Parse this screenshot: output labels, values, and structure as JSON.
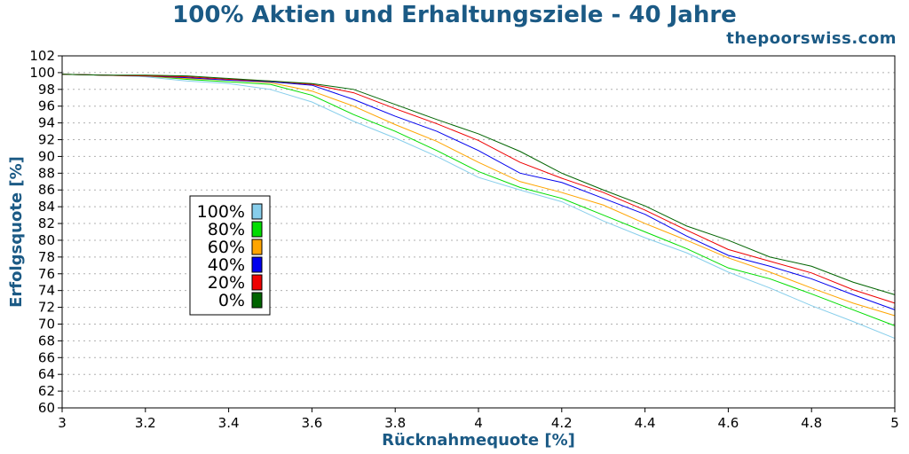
{
  "title": "100% Aktien und Erhaltungsziele - 40 Jahre",
  "site": "thepoorswiss.com",
  "chart_data": {
    "type": "line",
    "title": "100% Aktien und Erhaltungsziele - 40 Jahre",
    "xlabel": "Rücknahmequote [%]",
    "ylabel": "Erfolgsquote [%]",
    "xlim": [
      3,
      5
    ],
    "ylim": [
      60,
      102
    ],
    "x_ticks": [
      "3",
      "3.2",
      "3.4",
      "3.6",
      "3.8",
      "4",
      "4.2",
      "4.4",
      "4.6",
      "4.8",
      "5"
    ],
    "y_ticks": [
      "60",
      "62",
      "64",
      "66",
      "68",
      "70",
      "72",
      "74",
      "76",
      "78",
      "80",
      "82",
      "84",
      "86",
      "88",
      "90",
      "92",
      "94",
      "96",
      "98",
      "100",
      "102"
    ],
    "grid": "horizontal dotted",
    "legend_placement": "center-left",
    "x": [
      3.0,
      3.1,
      3.2,
      3.3,
      3.4,
      3.5,
      3.6,
      3.7,
      3.8,
      3.9,
      4.0,
      4.1,
      4.2,
      4.3,
      4.4,
      4.5,
      4.6,
      4.7,
      4.8,
      4.9,
      5.0
    ],
    "series": [
      {
        "name": "100%",
        "color": "#87ceeb",
        "values": [
          99.8,
          99.7,
          99.5,
          99.0,
          98.7,
          98.0,
          96.5,
          94.2,
          92.2,
          90.0,
          87.5,
          86.0,
          84.6,
          82.3,
          80.3,
          78.5,
          76.2,
          74.3,
          72.2,
          70.3,
          68.3
        ]
      },
      {
        "name": "80%",
        "color": "#00dd00",
        "values": [
          99.8,
          99.7,
          99.6,
          99.2,
          98.9,
          98.6,
          97.3,
          95.0,
          93.0,
          90.7,
          88.2,
          86.3,
          85.0,
          83.0,
          81.0,
          79.0,
          76.7,
          75.4,
          73.6,
          71.7,
          69.8
        ]
      },
      {
        "name": "60%",
        "color": "#ffa500",
        "values": [
          99.8,
          99.7,
          99.6,
          99.3,
          99.1,
          98.8,
          97.8,
          96.0,
          93.8,
          91.8,
          89.3,
          87.0,
          85.7,
          84.2,
          82.0,
          80.0,
          77.9,
          76.2,
          74.3,
          72.5,
          71.0
        ]
      },
      {
        "name": "40%",
        "color": "#0000ee",
        "values": [
          99.8,
          99.7,
          99.6,
          99.4,
          99.1,
          98.9,
          98.5,
          96.8,
          94.8,
          93.0,
          90.7,
          88.0,
          86.9,
          85.0,
          83.1,
          80.5,
          78.2,
          76.9,
          75.4,
          73.5,
          71.7
        ]
      },
      {
        "name": "20%",
        "color": "#ee0000",
        "values": [
          99.8,
          99.7,
          99.6,
          99.5,
          99.2,
          99.0,
          98.6,
          97.6,
          95.7,
          93.9,
          91.9,
          89.3,
          87.4,
          85.7,
          83.6,
          81.2,
          78.9,
          77.5,
          76.1,
          74.1,
          72.5
        ]
      },
      {
        "name": "0%",
        "color": "#006400",
        "values": [
          99.8,
          99.7,
          99.7,
          99.6,
          99.3,
          99.0,
          98.7,
          98.0,
          96.2,
          94.4,
          92.7,
          90.6,
          88.0,
          86.0,
          84.1,
          81.7,
          80.0,
          78.0,
          76.9,
          75.0,
          73.5
        ]
      }
    ]
  }
}
